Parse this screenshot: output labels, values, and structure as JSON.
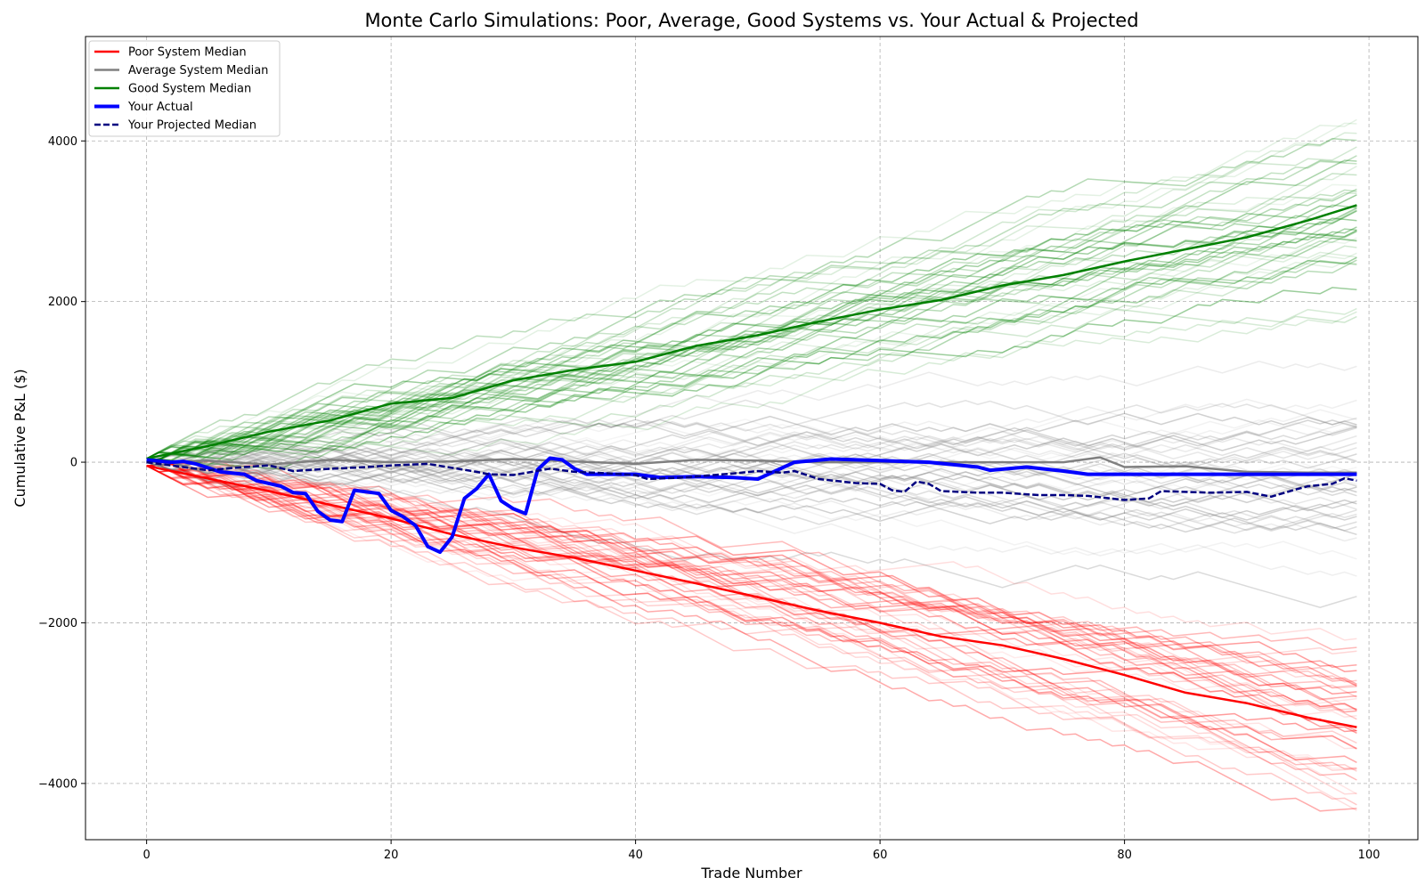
{
  "chart_data": {
    "type": "line",
    "title": "Monte Carlo Simulations: Poor, Average, Good Systems vs. Your Actual & Projected",
    "xlabel": "Trade Number",
    "ylabel": "Cumulative P&L ($)",
    "xlim": [
      -5,
      104
    ],
    "ylim": [
      -4700,
      5300
    ],
    "xticks": [
      0,
      20,
      40,
      60,
      80,
      100
    ],
    "yticks": [
      -4000,
      -2000,
      0,
      2000,
      4000
    ],
    "ytick_labels": [
      "−4000",
      "−2000",
      "0",
      "2000",
      "4000"
    ],
    "grid": true,
    "legend_position": "top-left",
    "simulation_bands": [
      {
        "system": "poor",
        "color": "#ff0000",
        "start": -45,
        "step_mean": -33,
        "noise_step": 45,
        "spread_end": 1250,
        "count": 40
      },
      {
        "system": "average",
        "color": "#808080",
        "start": 0,
        "step_mean": -1,
        "noise_step": 45,
        "spread_end": 1100,
        "count": 40
      },
      {
        "system": "good",
        "color": "#008000",
        "start": 45,
        "step_mean": 31.5,
        "noise_step": 45,
        "spread_end": 1550,
        "count": 40
      }
    ],
    "series": [
      {
        "name": "Poor System Median",
        "color": "#ff0000",
        "style": "solid",
        "x": [
          0,
          10,
          20,
          25,
          30,
          35,
          40,
          45,
          50,
          55,
          60,
          65,
          70,
          75,
          80,
          85,
          90,
          95,
          99
        ],
        "y": [
          -45,
          -360,
          -700,
          -900,
          -1060,
          -1190,
          -1350,
          -1510,
          -1680,
          -1850,
          -2000,
          -2170,
          -2280,
          -2450,
          -2650,
          -2870,
          -3000,
          -3180,
          -3300
        ]
      },
      {
        "name": "Average System Median",
        "color": "#808080",
        "style": "solid",
        "x": [
          0,
          5,
          10,
          15,
          20,
          25,
          30,
          35,
          40,
          45,
          50,
          55,
          60,
          65,
          70,
          75,
          78,
          80,
          85,
          90,
          95,
          99
        ],
        "y": [
          0,
          20,
          -30,
          30,
          0,
          10,
          40,
          10,
          -20,
          30,
          20,
          0,
          0,
          0,
          0,
          0,
          60,
          -60,
          -50,
          -120,
          -130,
          -130
        ]
      },
      {
        "name": "Good System Median",
        "color": "#008000",
        "style": "solid",
        "x": [
          0,
          5,
          10,
          15,
          20,
          25,
          30,
          35,
          40,
          45,
          50,
          55,
          60,
          65,
          70,
          75,
          80,
          85,
          90,
          95,
          99
        ],
        "y": [
          45,
          200,
          380,
          520,
          730,
          800,
          1020,
          1150,
          1250,
          1450,
          1580,
          1750,
          1900,
          2020,
          2200,
          2330,
          2500,
          2650,
          2800,
          3010,
          3200
        ]
      },
      {
        "name": "Your Actual",
        "color": "#0000ff",
        "style": "solid",
        "x": [
          0,
          2,
          3,
          4,
          6,
          8,
          9,
          11,
          12,
          13,
          14,
          15,
          16,
          17,
          19,
          20,
          21,
          22,
          23,
          24,
          25,
          26,
          27,
          28,
          29,
          30,
          31,
          32,
          33,
          34,
          35,
          36,
          37,
          40,
          42,
          45,
          48,
          50,
          53,
          56,
          60,
          64,
          68,
          69,
          72,
          75,
          77,
          80,
          99
        ],
        "y": [
          30,
          0,
          10,
          -20,
          -120,
          -150,
          -230,
          -300,
          -380,
          -390,
          -610,
          -720,
          -740,
          -350,
          -390,
          -600,
          -680,
          -790,
          -1050,
          -1120,
          -930,
          -450,
          -330,
          -150,
          -480,
          -580,
          -640,
          -90,
          50,
          30,
          -80,
          -150,
          -150,
          -150,
          -190,
          -180,
          -190,
          -210,
          0,
          40,
          20,
          0,
          -60,
          -100,
          -60,
          -110,
          -150,
          -150,
          -150
        ]
      },
      {
        "name": "Your Projected Median",
        "color": "#000080",
        "style": "dashed",
        "x": [
          0,
          5,
          8,
          10,
          12,
          14,
          18,
          20,
          23,
          27,
          28,
          30,
          33,
          35,
          38,
          40,
          41,
          44,
          48,
          50,
          52,
          53,
          55,
          58,
          60,
          61,
          62,
          63,
          64,
          65,
          68,
          70,
          73,
          75,
          77,
          80,
          82,
          83,
          87,
          90,
          92,
          94,
          95,
          97,
          98,
          99
        ],
        "y": [
          0,
          -100,
          -60,
          -40,
          -110,
          -90,
          -60,
          -40,
          -20,
          -120,
          -150,
          -160,
          -80,
          -120,
          -140,
          -160,
          -210,
          -190,
          -140,
          -110,
          -130,
          -110,
          -210,
          -260,
          -270,
          -350,
          -370,
          -240,
          -270,
          -360,
          -380,
          -380,
          -410,
          -410,
          -420,
          -470,
          -450,
          -360,
          -380,
          -370,
          -430,
          -340,
          -300,
          -270,
          -200,
          -230
        ]
      }
    ]
  }
}
